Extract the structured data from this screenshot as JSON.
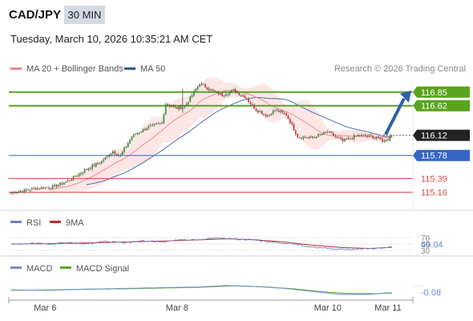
{
  "header": {
    "pair": "CAD/JPY",
    "timeframe": "30 MIN",
    "datetime": "Tuesday, March 10, 2026 10:35:21 AM CET"
  },
  "legend": {
    "ma20": "MA 20 + Bollinger Bands",
    "ma50": "MA 50",
    "credit": "Research © 2026 Trading Central"
  },
  "colors": {
    "up": "#27962f",
    "down": "#d22c2c",
    "green_level": "#5aa31f",
    "blue_level": "#3566c6",
    "red_level": "#e04a4a",
    "ma20": "#f08a8a",
    "ma50": "#4a6fae",
    "band": "#fde2e2",
    "rsi": "#6688cc",
    "rsi_ma": "#cc2222",
    "macd": "#6f8fd4",
    "macd_signal": "#55aa22"
  },
  "chart_data": [
    {
      "type": "candlestick",
      "title": "CAD/JPY",
      "ylim": [
        114.95,
        117.05
      ],
      "x_ticks": [
        "Mar 6",
        "Mar 8",
        "Mar 10",
        "Mar 11"
      ],
      "price_levels": [
        {
          "value": 116.85,
          "label": "116.85",
          "kind": "target"
        },
        {
          "value": 116.62,
          "label": "116.62",
          "kind": "target"
        },
        {
          "value": 116.12,
          "label": "116.12",
          "kind": "last"
        },
        {
          "value": 115.78,
          "label": "115.78",
          "kind": "pivot"
        },
        {
          "value": 115.39,
          "label": "115.39",
          "kind": "support"
        },
        {
          "value": 115.16,
          "label": "115.16",
          "kind": "support"
        }
      ],
      "close_anchors": [
        [
          0,
          115.15
        ],
        [
          12,
          115.22
        ],
        [
          22,
          115.25
        ],
        [
          30,
          115.35
        ],
        [
          40,
          115.55
        ],
        [
          48,
          115.68
        ],
        [
          54,
          115.85
        ],
        [
          58,
          115.78
        ],
        [
          64,
          116.1
        ],
        [
          72,
          116.25
        ],
        [
          80,
          116.33
        ],
        [
          82,
          116.65
        ],
        [
          88,
          116.58
        ],
        [
          92,
          116.6
        ],
        [
          96,
          116.8
        ],
        [
          100,
          117.0
        ],
        [
          106,
          116.88
        ],
        [
          112,
          116.8
        ],
        [
          118,
          116.88
        ],
        [
          124,
          116.77
        ],
        [
          130,
          116.55
        ],
        [
          136,
          116.45
        ],
        [
          140,
          116.55
        ],
        [
          146,
          116.47
        ],
        [
          152,
          116.1
        ],
        [
          160,
          116.08
        ],
        [
          168,
          116.18
        ],
        [
          176,
          116.02
        ],
        [
          184,
          116.12
        ],
        [
          192,
          116.1
        ],
        [
          198,
          116.02
        ],
        [
          202,
          116.12
        ]
      ],
      "projection": [
        [
          202,
          116.12
        ],
        [
          220,
          116.85
        ]
      ]
    },
    {
      "type": "line",
      "title": "RSI",
      "series": [
        {
          "name": "RSI"
        },
        {
          "name": "9MA"
        }
      ],
      "levels": [
        70,
        50,
        30
      ],
      "ylim": [
        25,
        75
      ],
      "last_value": "49.04",
      "rsi_anchors": [
        [
          0,
          48
        ],
        [
          10,
          52
        ],
        [
          20,
          50
        ],
        [
          30,
          55
        ],
        [
          40,
          50
        ],
        [
          50,
          58
        ],
        [
          60,
          54
        ],
        [
          70,
          60
        ],
        [
          80,
          56
        ],
        [
          90,
          64
        ],
        [
          100,
          62
        ],
        [
          110,
          70
        ],
        [
          120,
          65
        ],
        [
          130,
          62
        ],
        [
          140,
          55
        ],
        [
          150,
          50
        ],
        [
          160,
          40
        ],
        [
          170,
          35
        ],
        [
          180,
          33
        ],
        [
          190,
          36
        ],
        [
          200,
          38
        ],
        [
          204,
          49
        ]
      ],
      "ma_anchors": [
        [
          0,
          50
        ],
        [
          20,
          51
        ],
        [
          40,
          53
        ],
        [
          60,
          56
        ],
        [
          80,
          59
        ],
        [
          100,
          63
        ],
        [
          115,
          66
        ],
        [
          130,
          63
        ],
        [
          145,
          56
        ],
        [
          160,
          46
        ],
        [
          175,
          39
        ],
        [
          190,
          36
        ],
        [
          204,
          40
        ]
      ]
    },
    {
      "type": "line",
      "title": "MACD",
      "series": [
        {
          "name": "MACD"
        },
        {
          "name": "MACD Signal"
        }
      ],
      "ylim": [
        -0.25,
        0.35
      ],
      "last_value": "-0.08",
      "macd_anchors": [
        [
          0,
          -0.02
        ],
        [
          20,
          -0.03
        ],
        [
          40,
          0.0
        ],
        [
          60,
          0.02
        ],
        [
          80,
          0.04
        ],
        [
          100,
          0.06
        ],
        [
          115,
          0.1
        ],
        [
          130,
          0.07
        ],
        [
          145,
          0.02
        ],
        [
          160,
          -0.06
        ],
        [
          175,
          -0.14
        ],
        [
          190,
          -0.14
        ],
        [
          204,
          -0.08
        ]
      ],
      "signal_anchors": [
        [
          0,
          -0.03
        ],
        [
          20,
          -0.02
        ],
        [
          40,
          0.0
        ],
        [
          60,
          0.01
        ],
        [
          80,
          0.03
        ],
        [
          100,
          0.05
        ],
        [
          118,
          0.09
        ],
        [
          135,
          0.06
        ],
        [
          150,
          0.01
        ],
        [
          165,
          -0.07
        ],
        [
          180,
          -0.12
        ],
        [
          195,
          -0.12
        ],
        [
          204,
          -0.1
        ]
      ]
    }
  ]
}
